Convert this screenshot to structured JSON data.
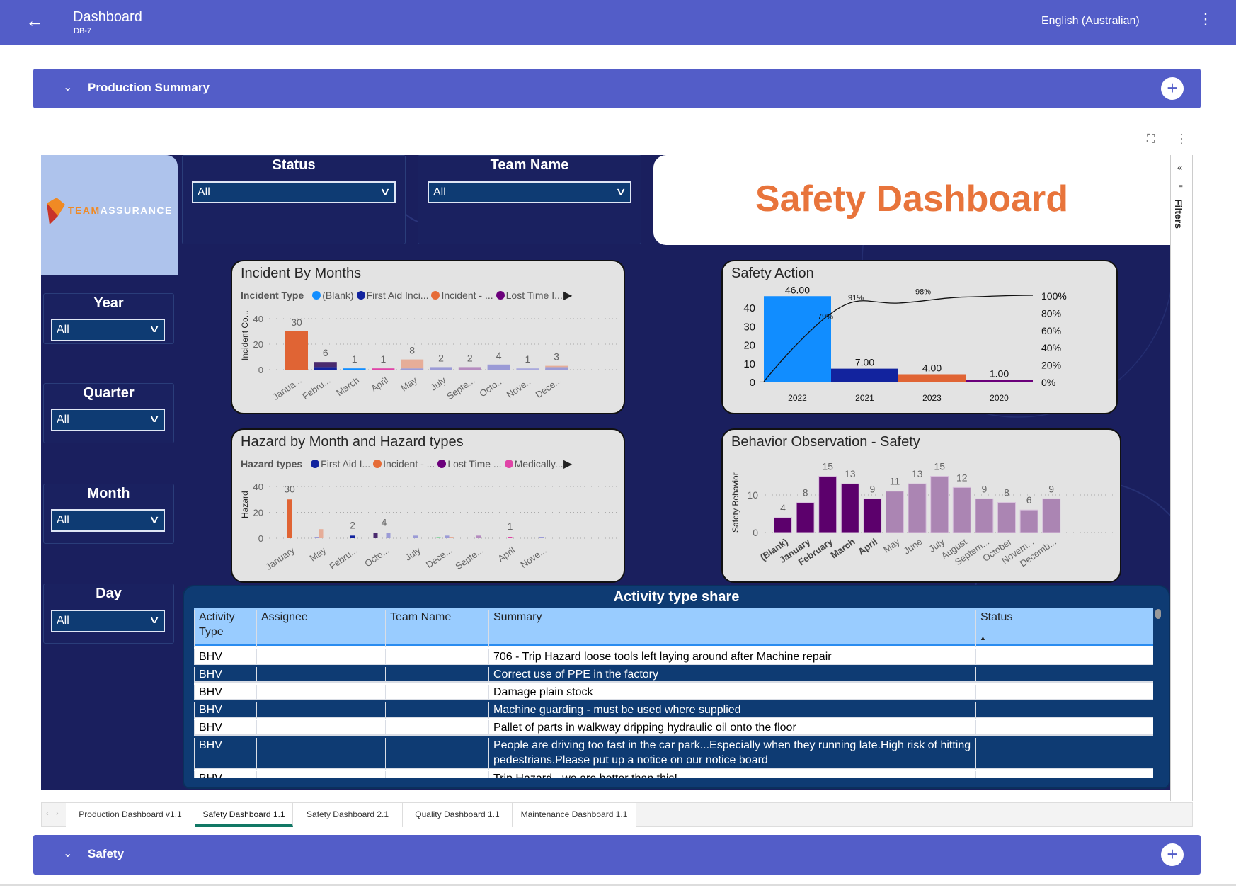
{
  "header": {
    "title": "Dashboard",
    "subtitle": "DB-7",
    "language": "English (Australian)"
  },
  "sections": {
    "production": "Production Summary",
    "safety": "Safety"
  },
  "report": {
    "logo": {
      "part1": "TEAM",
      "part2": "ASSURANCE"
    },
    "title": "Safety Dashboard",
    "slicers": {
      "status": {
        "label": "Status",
        "value": "All"
      },
      "team": {
        "label": "Team Name",
        "value": "All"
      },
      "year": {
        "label": "Year",
        "value": "All"
      },
      "quarter": {
        "label": "Quarter",
        "value": "All"
      },
      "month": {
        "label": "Month",
        "value": "All"
      },
      "day": {
        "label": "Day",
        "value": "All"
      }
    },
    "filters_label": "Filters",
    "incident_card": {
      "title": "Incident By Months",
      "legend_title": "Incident Type",
      "legend": [
        {
          "label": "(Blank)",
          "color": "#118dff"
        },
        {
          "label": "First Aid Inci...",
          "color": "#12239e"
        },
        {
          "label": "Incident - ...",
          "color": "#e66c37"
        },
        {
          "label": "Lost Time I...",
          "color": "#6b007b"
        }
      ]
    },
    "hazard_card": {
      "title": "Hazard by Month and Hazard types",
      "legend_title": "Hazard types",
      "legend": [
        {
          "label": "First Aid I...",
          "color": "#12239e"
        },
        {
          "label": "Incident - ...",
          "color": "#e66c37"
        },
        {
          "label": "Lost Time ...",
          "color": "#6b007b"
        },
        {
          "label": "Medically...",
          "color": "#e044a7"
        }
      ]
    },
    "action_card": {
      "title": "Safety Action"
    },
    "behavior_card": {
      "title": "Behavior Observation - Safety"
    },
    "table": {
      "title": "Activity type share",
      "columns": [
        "Activity Type",
        "Assignee",
        "Team Name",
        "Summary",
        "Status"
      ],
      "rows": [
        [
          "BHV",
          "",
          "",
          "706 - Trip Hazard loose tools left laying around after Machine repair",
          ""
        ],
        [
          "BHV",
          "",
          "",
          "Correct use of PPE in the factory",
          ""
        ],
        [
          "BHV",
          "",
          "",
          "Damage plain stock",
          ""
        ],
        [
          "BHV",
          "",
          "",
          "Machine guarding - must be used where supplied",
          ""
        ],
        [
          "BHV",
          "",
          "",
          "Pallet of parts in walkway dripping hydraulic oil onto the floor",
          ""
        ],
        [
          "BHV",
          "",
          "",
          "People are driving too fast in the car park...Especially when they running late.High risk of hitting pedestrians.Please put up a notice on our notice board",
          ""
        ],
        [
          "BHV",
          "",
          "",
          "Trip Hazard - we are better than this!",
          ""
        ]
      ]
    }
  },
  "tabs": [
    {
      "label": "Production Dashboard v1.1"
    },
    {
      "label": "Safety Dashboard 1.1",
      "active": true
    },
    {
      "label": "Safety Dashboard 2.1"
    },
    {
      "label": "Quality Dashboard 1.1"
    },
    {
      "label": "Maintenance Dashboard 1.1"
    }
  ],
  "chart_data": [
    {
      "type": "bar",
      "title": "Incident By Months",
      "ylabel": "Incident Co...",
      "ylim": [
        0,
        40
      ],
      "yticks": [
        0,
        20,
        40
      ],
      "categories": [
        "Janua...",
        "Febru...",
        "March",
        "April",
        "May",
        "July",
        "Septe...",
        "Octo...",
        "Nove...",
        "Dece..."
      ],
      "totals": [
        30,
        6,
        1,
        1,
        8,
        2,
        2,
        4,
        1,
        3
      ],
      "segments": [
        [
          {
            "value": 30,
            "color": "#e06434"
          }
        ],
        [
          {
            "value": 2,
            "color": "#12239e"
          },
          {
            "value": 4,
            "color": "#4a2a6e"
          }
        ],
        [
          {
            "value": 1,
            "color": "#118dff"
          }
        ],
        [
          {
            "value": 1,
            "color": "#e044a7"
          }
        ],
        [
          {
            "value": 1,
            "color": "#9b9bd6"
          },
          {
            "value": 7,
            "color": "#e6ad98"
          }
        ],
        [
          {
            "value": 2,
            "color": "#9b9bd6"
          }
        ],
        [
          {
            "value": 2,
            "color": "#b58cbf"
          }
        ],
        [
          {
            "value": 4,
            "color": "#9b9bd6"
          }
        ],
        [
          {
            "value": 1,
            "color": "#a9a9dc"
          }
        ],
        [
          {
            "value": 2,
            "color": "#9b9bd6"
          },
          {
            "value": 1,
            "color": "#e6ad98"
          }
        ]
      ]
    },
    {
      "type": "bar",
      "title": "Hazard by Month and Hazard types",
      "ylabel": "Hazard",
      "ylim": [
        0,
        40
      ],
      "yticks": [
        0,
        20,
        40
      ],
      "categories": [
        "January",
        "May",
        "Febru...",
        "Octo...",
        "July",
        "Dece...",
        "Septe...",
        "April",
        "Nove..."
      ],
      "labels": [
        "30",
        "",
        "2",
        "4",
        "",
        "",
        "",
        "1",
        ""
      ],
      "bars": [
        [
          {
            "value": 30,
            "color": "#e06434",
            "slot": 0
          }
        ],
        [
          {
            "value": 1,
            "color": "#9b9bd6",
            "slot": -1
          },
          {
            "value": 7,
            "color": "#e6ad98",
            "slot": 0
          }
        ],
        [
          {
            "value": 2,
            "color": "#12239e",
            "slot": 0
          }
        ],
        [
          {
            "value": 4,
            "color": "#4a2a6e",
            "slot": -2
          },
          {
            "value": 4,
            "color": "#9b9bd6",
            "slot": 1
          }
        ],
        [
          {
            "value": 2,
            "color": "#9b9bd6",
            "slot": 0
          }
        ],
        [
          {
            "value": 1,
            "color": "#8fd4a5",
            "slot": -2
          },
          {
            "value": 2,
            "color": "#9b9bd6",
            "slot": 0
          },
          {
            "value": 1,
            "color": "#e6ad98",
            "slot": 1
          }
        ],
        [
          {
            "value": 2,
            "color": "#b58cbf",
            "slot": 0
          }
        ],
        [
          {
            "value": 1,
            "color": "#e044a7",
            "slot": 0
          }
        ],
        [
          {
            "value": 1,
            "color": "#9b9bd6",
            "slot": 0
          }
        ]
      ]
    },
    {
      "type": "bar",
      "title": "Safety Action",
      "categories": [
        "2022",
        "2021",
        "2023",
        "2020"
      ],
      "values": [
        46,
        7,
        4,
        1
      ],
      "value_labels": [
        "46.00",
        "7.00",
        "4.00",
        "1.00"
      ],
      "colors": [
        "#118dff",
        "#12239e",
        "#e06434",
        "#6b007b"
      ],
      "ylim": [
        0,
        46
      ],
      "yticks": [
        0,
        10,
        20,
        30,
        40
      ],
      "cumulative_pct": [
        79,
        91,
        98,
        100
      ],
      "cumulative_labels": [
        "79%",
        "91%",
        "98%"
      ],
      "y2ticks": [
        "0%",
        "20%",
        "40%",
        "60%",
        "80%",
        "100%"
      ]
    },
    {
      "type": "bar",
      "title": "Behavior Observation - Safety",
      "ylabel": "Safety Behavior",
      "ylim": [
        0,
        15
      ],
      "yticks": [
        0,
        10
      ],
      "categories": [
        "(Blank)",
        "January",
        "February",
        "March",
        "April",
        "May",
        "June",
        "July",
        "August",
        "Septem...",
        "October",
        "Novem...",
        "Decemb..."
      ],
      "values": [
        4,
        8,
        15,
        13,
        9,
        11,
        13,
        15,
        12,
        9,
        8,
        6,
        9
      ],
      "highlighted": [
        true,
        true,
        true,
        true,
        true,
        false,
        false,
        false,
        false,
        false,
        false,
        false,
        false
      ],
      "colors": {
        "highlight": "#5c006c",
        "normal": "#ab85b3"
      }
    }
  ]
}
